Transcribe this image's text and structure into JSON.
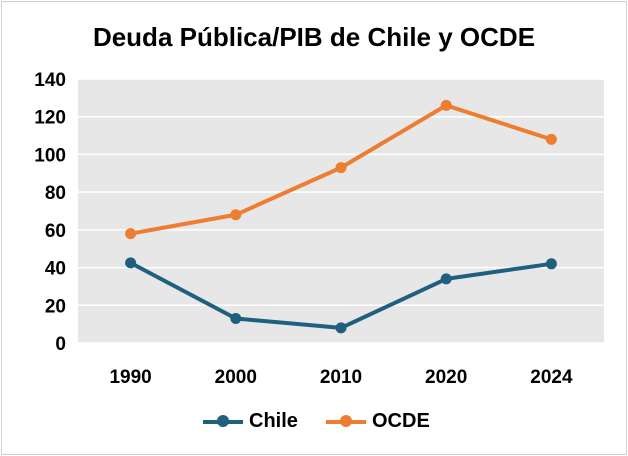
{
  "chart_data": {
    "type": "line",
    "title": "Deuda Pública/PIB de Chile y OCDE",
    "categories": [
      "1990",
      "2000",
      "2010",
      "2020",
      "2024"
    ],
    "ylim": [
      0,
      140
    ],
    "yticks": [
      "0",
      "20",
      "40",
      "60",
      "80",
      "100",
      "120",
      "140"
    ],
    "grid": true,
    "legend_position": "bottom",
    "series": [
      {
        "name": "Chile",
        "color": "#1f5f80",
        "values": [
          42.5,
          13,
          8,
          34,
          42
        ]
      },
      {
        "name": "OCDE",
        "color": "#ed7d31",
        "values": [
          58,
          68,
          93,
          126,
          108
        ]
      }
    ]
  },
  "colors": {
    "plot_background": "#e7e7e7",
    "gridline": "#ffffff"
  }
}
